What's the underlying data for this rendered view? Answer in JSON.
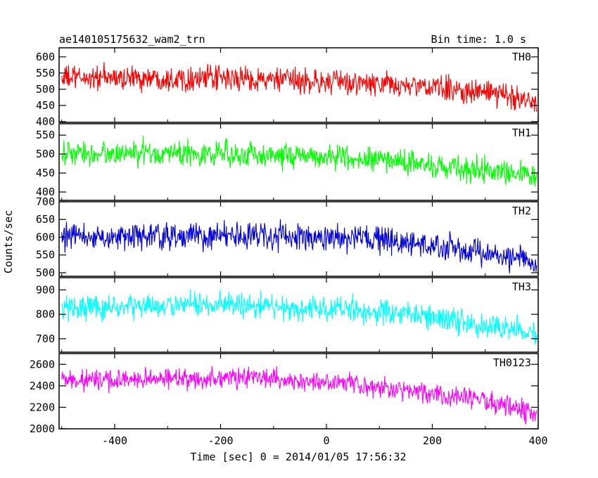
{
  "title": "ae140105175632_wam2_trn",
  "bin_time": "Bin time: 1.0 s",
  "ylabel": "Counts/sec",
  "xlabel": "Time [sec] 0 = 2014/01/05 17:56:32",
  "chart_data": {
    "type": "line",
    "title": "ae140105175632_wam2_trn",
    "subtitle": "Bin time: 1.0 s",
    "xlabel": "Time [sec] 0 = 2014/01/05 17:56:32",
    "ylabel": "Counts/sec",
    "xlim": [
      -505,
      400
    ],
    "x_start": -500,
    "x_end": 397,
    "x_step": 1,
    "x_ticks": [
      -400,
      -200,
      0,
      200,
      400
    ],
    "x_tick_labels": [
      "-400",
      "-200",
      "0",
      "200",
      "400"
    ],
    "grid": false,
    "legend": "none",
    "panels": [
      {
        "name": "TH0",
        "color": "#ff0000",
        "ylim": [
          398,
          628
        ],
        "yticks": [
          400,
          450,
          500,
          550,
          600
        ],
        "ytick_labels": [
          "400",
          "450",
          "500",
          "550",
          "600"
        ],
        "trend": [
          [
            -500,
            535
          ],
          [
            -300,
            535
          ],
          [
            -150,
            532
          ],
          [
            0,
            522
          ],
          [
            100,
            515
          ],
          [
            200,
            505
          ],
          [
            300,
            490
          ],
          [
            397,
            465
          ]
        ],
        "noise": 28
      },
      {
        "name": "TH1",
        "color": "#00ff00",
        "ylim": [
          378,
          580
        ],
        "yticks": [
          400,
          450,
          500,
          550
        ],
        "ytick_labels": [
          "400",
          "450",
          "500",
          "550"
        ],
        "trend": [
          [
            -500,
            500
          ],
          [
            -300,
            502
          ],
          [
            -150,
            500
          ],
          [
            0,
            493
          ],
          [
            100,
            485
          ],
          [
            200,
            470
          ],
          [
            300,
            458
          ],
          [
            397,
            440
          ]
        ],
        "noise": 24
      },
      {
        "name": "TH2",
        "color": "#0000dd",
        "ylim": [
          490,
          700
        ],
        "yticks": [
          500,
          550,
          600,
          650,
          700
        ],
        "ytick_labels": [
          "500",
          "550",
          "600",
          "650",
          "700"
        ],
        "trend": [
          [
            -500,
            600
          ],
          [
            -300,
            603
          ],
          [
            -150,
            605
          ],
          [
            0,
            598
          ],
          [
            100,
            590
          ],
          [
            200,
            575
          ],
          [
            300,
            555
          ],
          [
            397,
            530
          ]
        ],
        "noise": 27
      },
      {
        "name": "TH3",
        "color": "#00ffff",
        "ylim": [
          645,
          950
        ],
        "yticks": [
          700,
          800,
          900
        ],
        "ytick_labels": [
          "700",
          "800",
          "900"
        ],
        "trend": [
          [
            -500,
            825
          ],
          [
            -300,
            835
          ],
          [
            -150,
            838
          ],
          [
            0,
            822
          ],
          [
            100,
            810
          ],
          [
            200,
            785
          ],
          [
            300,
            760
          ],
          [
            397,
            715
          ]
        ],
        "noise": 38
      },
      {
        "name": "TH0123",
        "color": "#ff00ff",
        "ylim": [
          2000,
          2700
        ],
        "yticks": [
          2000,
          2200,
          2400,
          2600
        ],
        "ytick_labels": [
          "2000",
          "2200",
          "2400",
          "2600"
        ],
        "trend": [
          [
            -500,
            2450
          ],
          [
            -300,
            2465
          ],
          [
            -150,
            2475
          ],
          [
            0,
            2430
          ],
          [
            100,
            2390
          ],
          [
            200,
            2330
          ],
          [
            300,
            2260
          ],
          [
            397,
            2130
          ]
        ],
        "noise": 70
      }
    ]
  }
}
